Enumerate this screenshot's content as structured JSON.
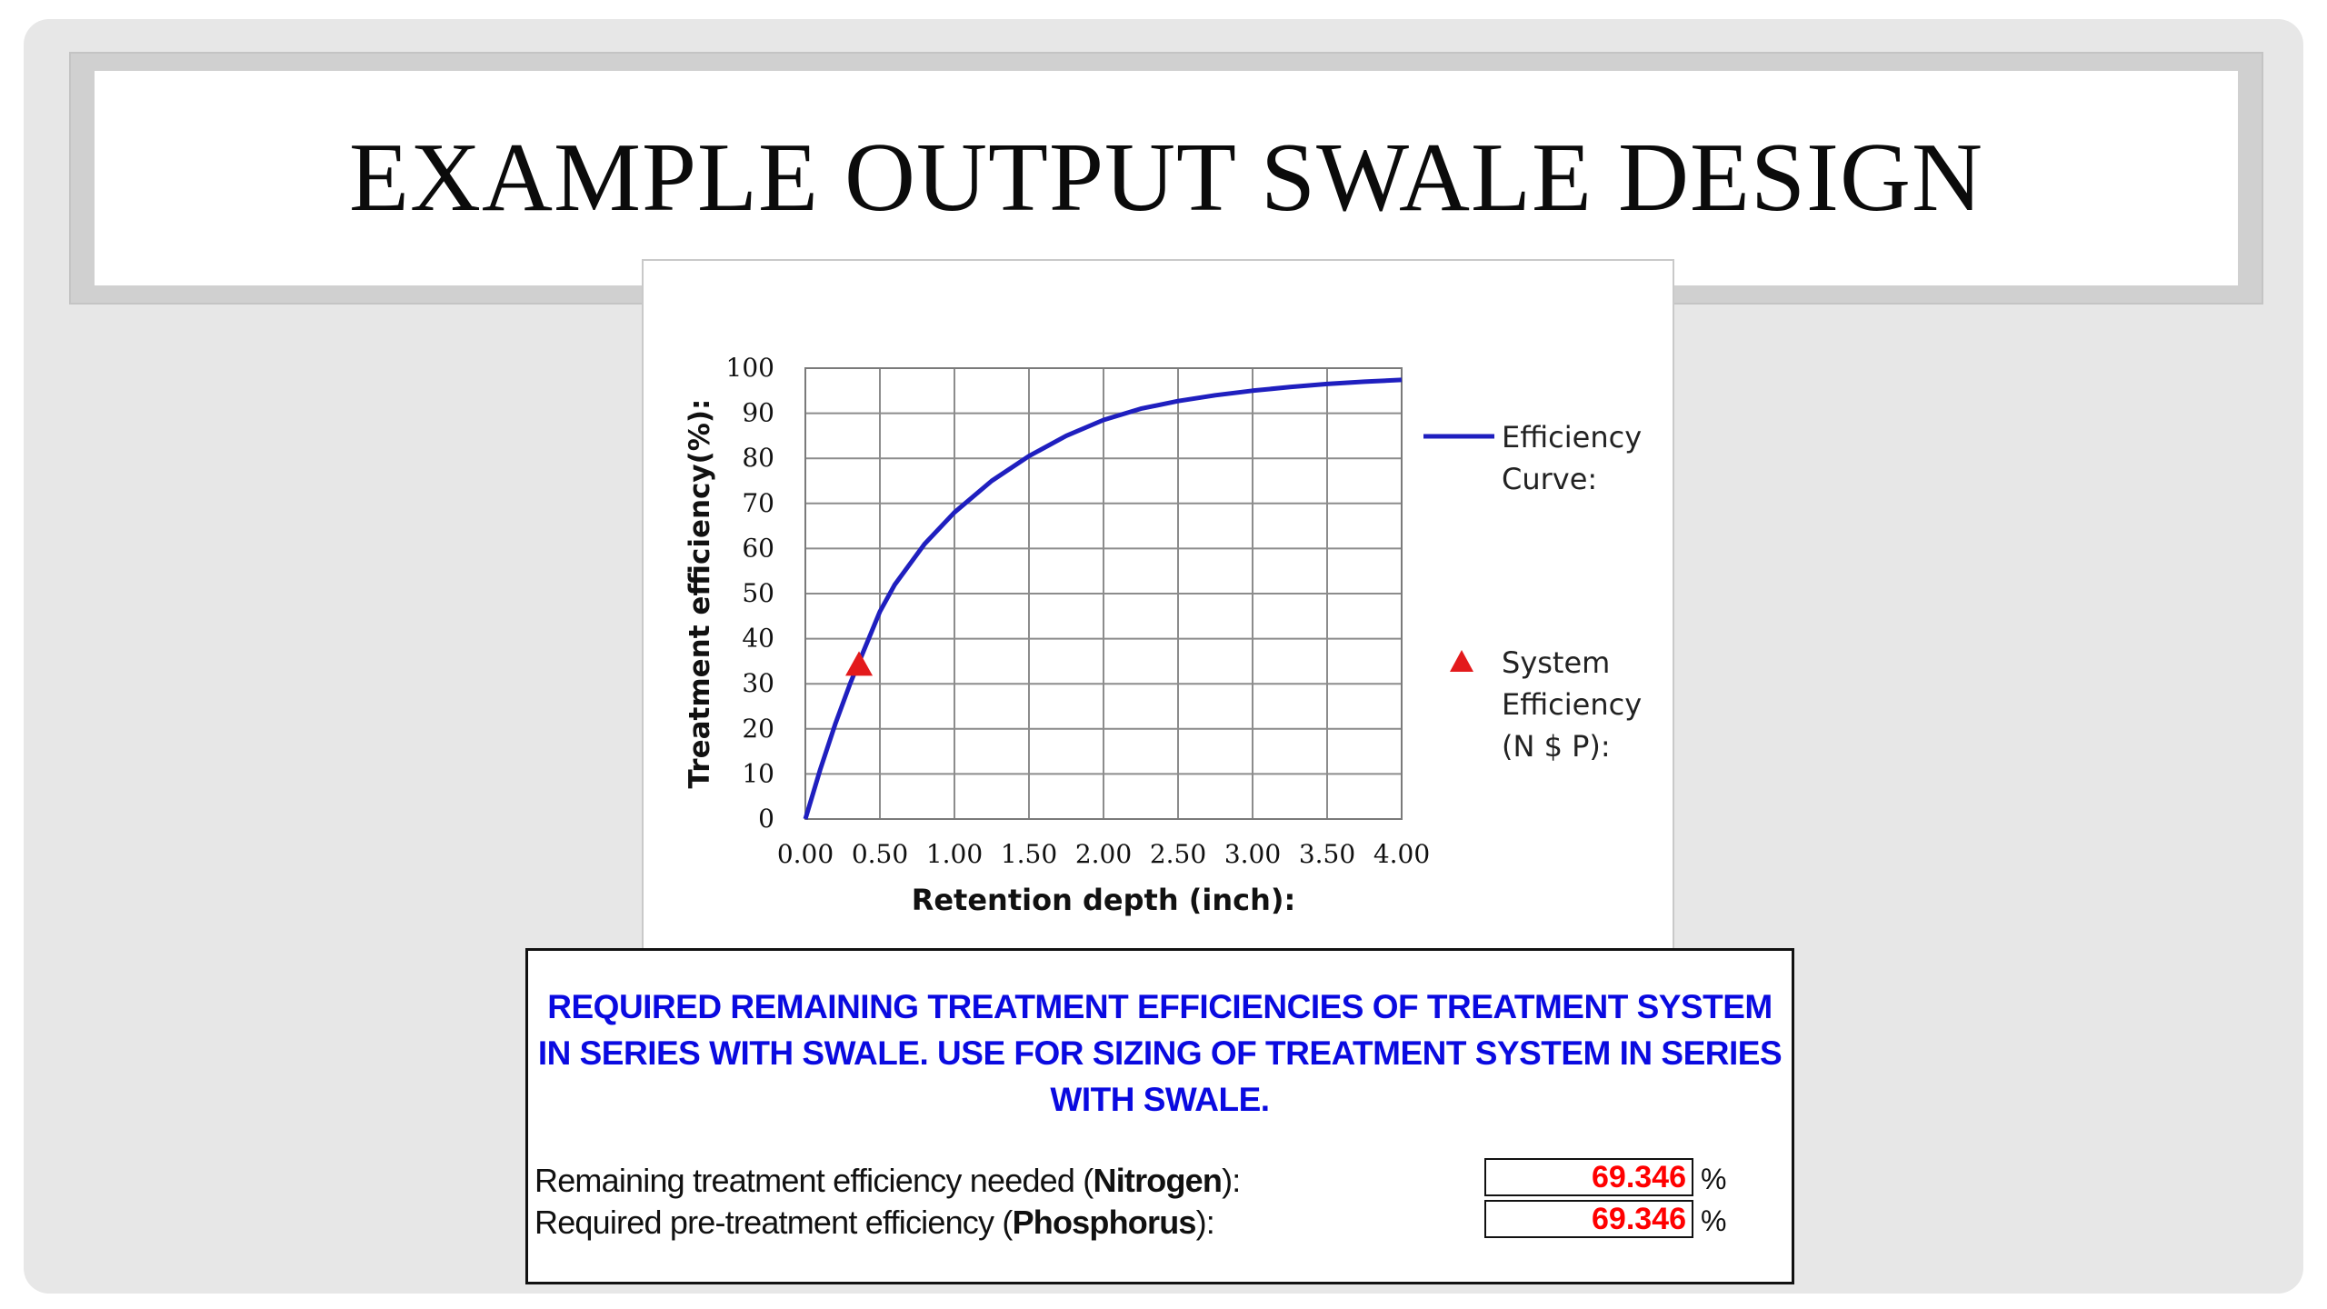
{
  "slide": {
    "title": "EXAMPLE OUTPUT SWALE DESIGN"
  },
  "chart_data": {
    "type": "line",
    "xlabel": "Retention depth (inch):",
    "ylabel": "Treatment efficiency(%):",
    "xlim": [
      0,
      4
    ],
    "ylim": [
      0,
      100
    ],
    "x_ticks": [
      "0.00",
      "0.50",
      "1.00",
      "1.50",
      "2.00",
      "2.50",
      "3.00",
      "3.50",
      "4.00"
    ],
    "y_ticks": [
      "0",
      "10",
      "20",
      "30",
      "40",
      "50",
      "60",
      "70",
      "80",
      "90",
      "100"
    ],
    "grid": true,
    "legend_position": "right",
    "series": [
      {
        "name": "Efficiency Curve:",
        "type": "line",
        "color": "#1f1fbf",
        "x": [
          0,
          0.1,
          0.2,
          0.3,
          0.4,
          0.5,
          0.6,
          0.8,
          1.0,
          1.25,
          1.5,
          1.75,
          2.0,
          2.25,
          2.5,
          2.75,
          3.0,
          3.25,
          3.5,
          3.75,
          4.0
        ],
        "y": [
          0,
          11,
          21,
          30,
          38,
          46,
          52,
          61,
          68,
          75,
          80.5,
          85,
          88.5,
          91,
          92.7,
          94,
          95,
          95.8,
          96.5,
          97,
          97.4
        ]
      },
      {
        "name": "System Efficiency (N $ P):",
        "type": "scatter",
        "marker": "triangle-up",
        "color": "#e31a1c",
        "x": [
          0.36
        ],
        "y": [
          34
        ]
      }
    ]
  },
  "panel": {
    "heading": "REQUIRED REMAINING TREATMENT EFFICIENCIES OF TREATMENT SYSTEM IN SERIES WITH SWALE. USE FOR SIZING OF TREATMENT SYSTEM IN SERIES WITH SWALE.",
    "rows": [
      {
        "label_before": "Remaining treatment efficiency needed (",
        "label_bold": "Nitrogen",
        "label_after": "):",
        "value": "69.346",
        "unit": "%"
      },
      {
        "label_before": "Required pre-treatment efficiency (",
        "label_bold": "Phosphorus",
        "label_after": "):",
        "value": "69.346",
        "unit": "%"
      }
    ]
  }
}
